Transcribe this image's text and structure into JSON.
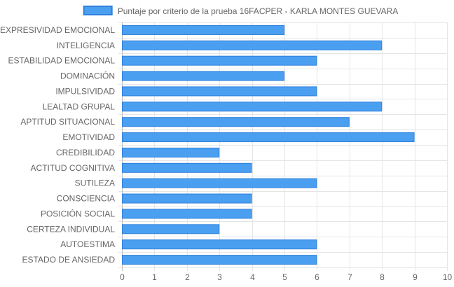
{
  "chart_data": {
    "type": "bar",
    "orientation": "horizontal",
    "categories": [
      "EXPRESIVIDAD EMOCIONAL",
      "INTELIGENCIA",
      "ESTABILIDAD EMOCIONAL",
      "DOMINACIÓN",
      "IMPULSIVIDAD",
      "LEALTAD GRUPAL",
      "APTITUD SITUACIONAL",
      "EMOTIVIDAD",
      "CREDIBILIDAD",
      "ACTITUD COGNITIVA",
      "SUTILEZA",
      "CONSCIENCIA",
      "POSICIÓN SOCIAL",
      "CERTEZA INDIVIDUAL",
      "AUTOESTIMA",
      "ESTADO DE ANSIEDAD"
    ],
    "series": [
      {
        "name": "Puntaje por criterio de la prueba 16FACPER - KARLA MONTES GUEVARA",
        "values": [
          5,
          8,
          6,
          5,
          6,
          8,
          7,
          9,
          3,
          4,
          6,
          4,
          4,
          3,
          6,
          6
        ],
        "color": "#4a9ff0",
        "border_color": "#2f80dc"
      }
    ],
    "xlim": [
      0,
      10
    ],
    "xticks": [
      "0",
      "1",
      "2",
      "3",
      "4",
      "5",
      "6",
      "7",
      "8",
      "9",
      "10"
    ],
    "grid": true,
    "legend_position": "top-center"
  }
}
